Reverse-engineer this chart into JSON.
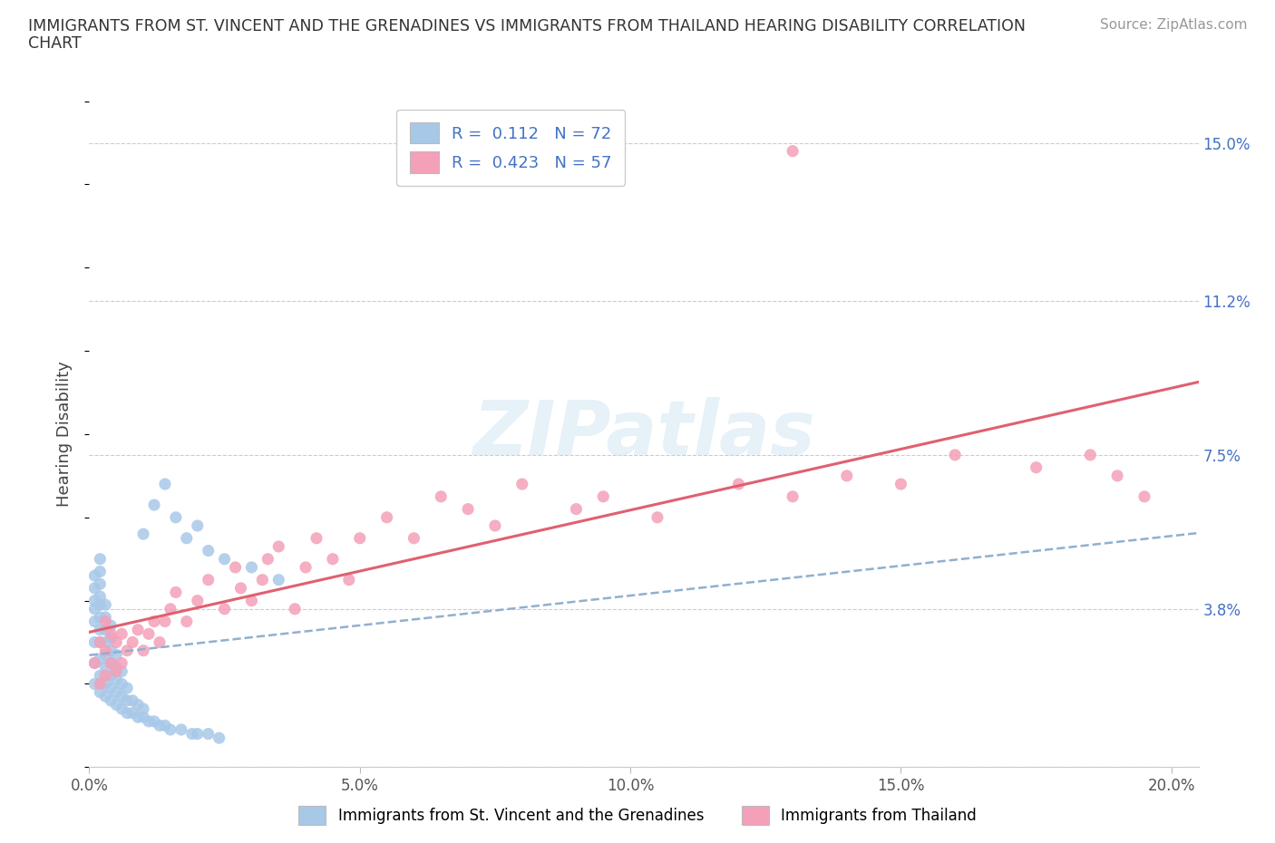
{
  "title_line1": "IMMIGRANTS FROM ST. VINCENT AND THE GRENADINES VS IMMIGRANTS FROM THAILAND HEARING DISABILITY CORRELATION",
  "title_line2": "CHART",
  "source": "Source: ZipAtlas.com",
  "ylabel": "Hearing Disability",
  "xlim": [
    0.0,
    0.205
  ],
  "ylim": [
    0.0,
    0.16
  ],
  "xticks": [
    0.0,
    0.05,
    0.1,
    0.15,
    0.2
  ],
  "xtick_labels": [
    "0.0%",
    "5.0%",
    "10.0%",
    "15.0%",
    "20.0%"
  ],
  "yticks": [
    0.0,
    0.038,
    0.075,
    0.112,
    0.15
  ],
  "ytick_labels": [
    "",
    "3.8%",
    "7.5%",
    "11.2%",
    "15.0%"
  ],
  "R1": "0.112",
  "N1": "72",
  "R2": "0.423",
  "N2": "57",
  "color_blue": "#a8c8e8",
  "color_pink": "#f4a0b8",
  "color_blue_line": "#90b0d0",
  "color_pink_line": "#e06070",
  "color_axis_text": "#4472c4",
  "watermark": "ZIPatlas",
  "bg": "#ffffff",
  "grid_color": "#cccccc",
  "blue_x": [
    0.001,
    0.001,
    0.001,
    0.001,
    0.001,
    0.001,
    0.001,
    0.001,
    0.002,
    0.002,
    0.002,
    0.002,
    0.002,
    0.002,
    0.002,
    0.002,
    0.002,
    0.002,
    0.002,
    0.003,
    0.003,
    0.003,
    0.003,
    0.003,
    0.003,
    0.003,
    0.003,
    0.004,
    0.004,
    0.004,
    0.004,
    0.004,
    0.004,
    0.004,
    0.005,
    0.005,
    0.005,
    0.005,
    0.005,
    0.006,
    0.006,
    0.006,
    0.006,
    0.007,
    0.007,
    0.007,
    0.008,
    0.008,
    0.009,
    0.009,
    0.01,
    0.01,
    0.011,
    0.012,
    0.013,
    0.014,
    0.015,
    0.017,
    0.019,
    0.02,
    0.022,
    0.024,
    0.01,
    0.012,
    0.014,
    0.016,
    0.018,
    0.02,
    0.022,
    0.025,
    0.03,
    0.035
  ],
  "blue_y": [
    0.02,
    0.025,
    0.03,
    0.035,
    0.038,
    0.04,
    0.043,
    0.046,
    0.018,
    0.022,
    0.026,
    0.03,
    0.033,
    0.036,
    0.039,
    0.041,
    0.044,
    0.047,
    0.05,
    0.017,
    0.02,
    0.024,
    0.027,
    0.03,
    0.033,
    0.036,
    0.039,
    0.016,
    0.019,
    0.022,
    0.025,
    0.028,
    0.031,
    0.034,
    0.015,
    0.018,
    0.021,
    0.024,
    0.027,
    0.014,
    0.017,
    0.02,
    0.023,
    0.013,
    0.016,
    0.019,
    0.013,
    0.016,
    0.012,
    0.015,
    0.012,
    0.014,
    0.011,
    0.011,
    0.01,
    0.01,
    0.009,
    0.009,
    0.008,
    0.008,
    0.008,
    0.007,
    0.056,
    0.063,
    0.068,
    0.06,
    0.055,
    0.058,
    0.052,
    0.05,
    0.048,
    0.045
  ],
  "pink_x": [
    0.001,
    0.002,
    0.002,
    0.003,
    0.003,
    0.003,
    0.004,
    0.004,
    0.005,
    0.005,
    0.006,
    0.006,
    0.007,
    0.008,
    0.009,
    0.01,
    0.011,
    0.012,
    0.013,
    0.014,
    0.015,
    0.016,
    0.018,
    0.02,
    0.022,
    0.025,
    0.027,
    0.028,
    0.03,
    0.032,
    0.033,
    0.035,
    0.038,
    0.04,
    0.042,
    0.045,
    0.048,
    0.05,
    0.055,
    0.06,
    0.065,
    0.07,
    0.075,
    0.08,
    0.09,
    0.095,
    0.105,
    0.12,
    0.13,
    0.14,
    0.15,
    0.16,
    0.175,
    0.185,
    0.19,
    0.195,
    0.13
  ],
  "pink_y": [
    0.025,
    0.02,
    0.03,
    0.022,
    0.028,
    0.035,
    0.025,
    0.032,
    0.023,
    0.03,
    0.025,
    0.032,
    0.028,
    0.03,
    0.033,
    0.028,
    0.032,
    0.035,
    0.03,
    0.035,
    0.038,
    0.042,
    0.035,
    0.04,
    0.045,
    0.038,
    0.048,
    0.043,
    0.04,
    0.045,
    0.05,
    0.053,
    0.038,
    0.048,
    0.055,
    0.05,
    0.045,
    0.055,
    0.06,
    0.055,
    0.065,
    0.062,
    0.058,
    0.068,
    0.062,
    0.065,
    0.06,
    0.068,
    0.065,
    0.07,
    0.068,
    0.075,
    0.072,
    0.075,
    0.07,
    0.065,
    0.148
  ]
}
